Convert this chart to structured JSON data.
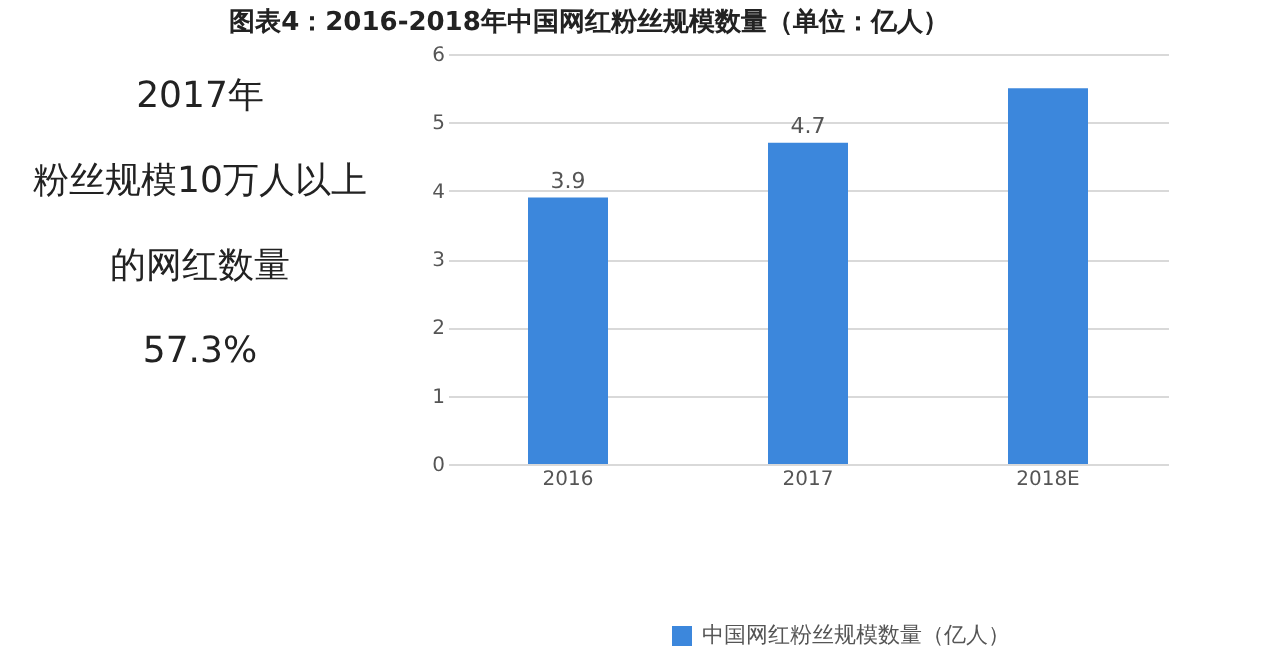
{
  "chart_data": {
    "type": "bar",
    "title": "图表4：2016-2018年中国网红粉丝规模数量（单位：亿人）",
    "categories": [
      "2016",
      "2017",
      "2018E"
    ],
    "series": [
      {
        "name": "中国网红粉丝规模数量（亿人）",
        "color": "#3c87dc",
        "values": [
          3.9,
          4.7,
          5.5
        ],
        "value_labels": [
          "3.9",
          "4.7",
          null
        ]
      }
    ],
    "ylim": [
      0,
      6
    ],
    "yticks": [
      0,
      1,
      2,
      3,
      4,
      5,
      6
    ],
    "grid": "y",
    "legend": "bottom",
    "annotations": [
      "2017年",
      "粉丝规模10万人以上",
      "的网红数量",
      "57.3%"
    ]
  }
}
